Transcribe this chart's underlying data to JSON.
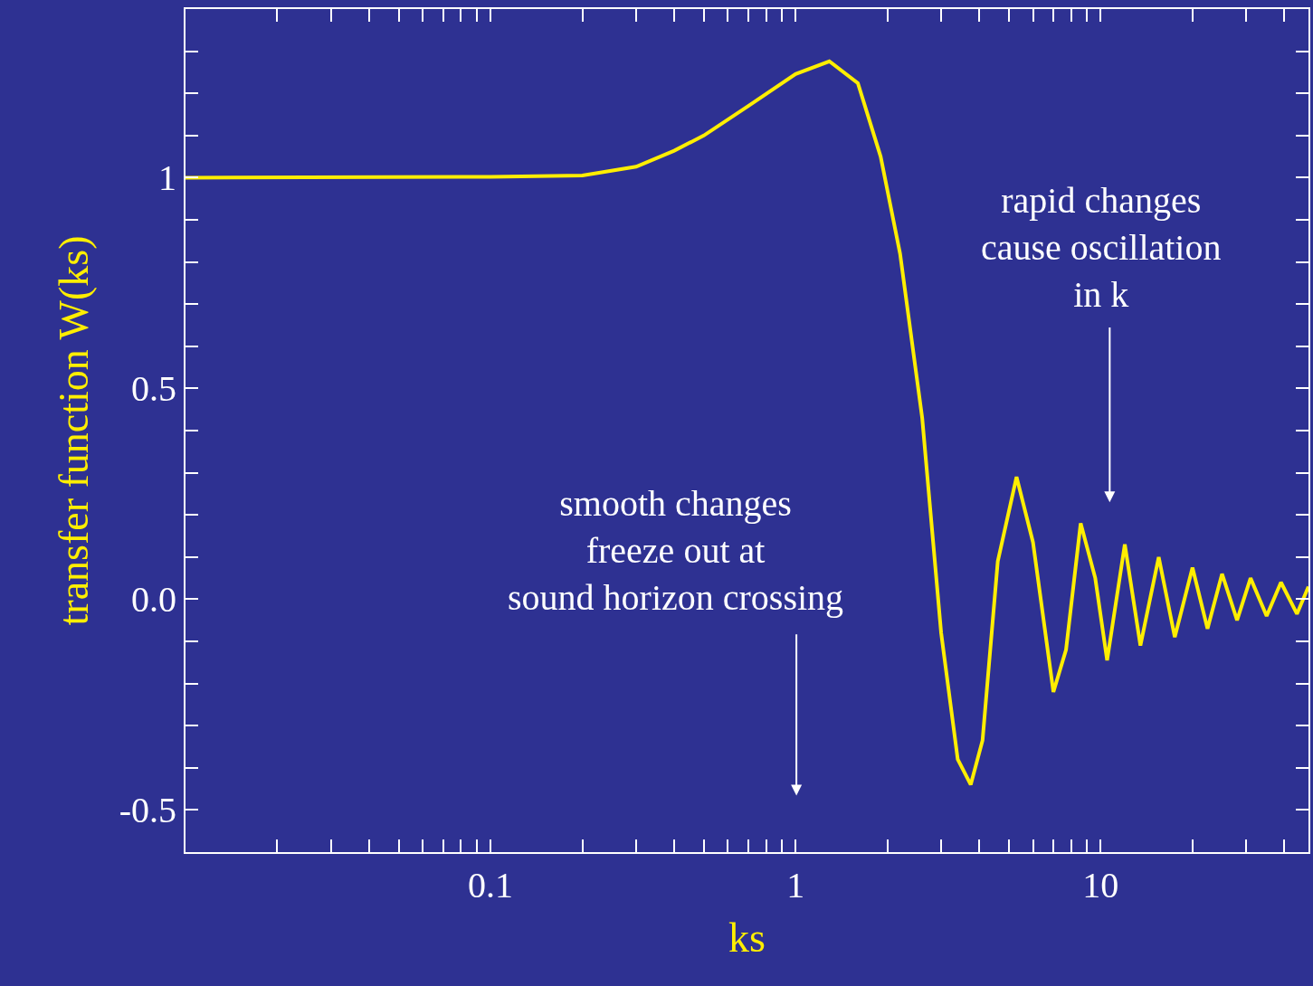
{
  "chart_data": {
    "type": "line",
    "xlabel": "ks",
    "ylabel": "transfer function W(ks)",
    "log": "x",
    "grid": false,
    "marker": "none",
    "line_style": "solid",
    "xlim": [
      0.01,
      48
    ],
    "ylim": [
      -0.6,
      1.4
    ],
    "xticks": [
      {
        "value": 0.02,
        "label": null
      },
      {
        "value": 0.03,
        "label": null
      },
      {
        "value": 0.04,
        "label": null
      },
      {
        "value": 0.05,
        "label": null
      },
      {
        "value": 0.06,
        "label": null
      },
      {
        "value": 0.07,
        "label": null
      },
      {
        "value": 0.08,
        "label": null
      },
      {
        "value": 0.09,
        "label": null
      },
      0.1,
      {
        "value": 0.2,
        "label": null
      },
      {
        "value": 0.3,
        "label": null
      },
      {
        "value": 0.4,
        "label": null
      },
      {
        "value": 0.5,
        "label": null
      },
      {
        "value": 0.6,
        "label": null
      },
      {
        "value": 0.7,
        "label": null
      },
      {
        "value": 0.8,
        "label": null
      },
      {
        "value": 0.9,
        "label": null
      },
      1,
      {
        "value": 2,
        "label": null
      },
      {
        "value": 3,
        "label": null
      },
      {
        "value": 4,
        "label": null
      },
      {
        "value": 5,
        "label": null
      },
      {
        "value": 6,
        "label": null
      },
      {
        "value": 7,
        "label": null
      },
      {
        "value": 8,
        "label": null
      },
      {
        "value": 9,
        "label": null
      },
      10,
      {
        "value": 20,
        "label": null
      },
      {
        "value": 30,
        "label": null
      },
      {
        "value": 40,
        "label": null
      }
    ],
    "yticks": [
      -0.5,
      {
        "value": -0.4,
        "label": null
      },
      {
        "value": -0.3,
        "label": null
      },
      {
        "value": -0.2,
        "label": null
      },
      {
        "value": -0.1,
        "label": null
      },
      {
        "value": 0,
        "label": "0.0"
      },
      {
        "value": 0.1,
        "label": null
      },
      {
        "value": 0.2,
        "label": null
      },
      {
        "value": 0.3,
        "label": null
      },
      {
        "value": 0.4,
        "label": null
      },
      0.5,
      {
        "value": 0.6,
        "label": null
      },
      {
        "value": 0.7,
        "label": null
      },
      {
        "value": 0.8,
        "label": null
      },
      {
        "value": 0.9,
        "label": null
      },
      1,
      {
        "value": 1.1,
        "label": null
      },
      {
        "value": 1.2,
        "label": null
      },
      {
        "value": 1.3,
        "label": null
      }
    ],
    "series": [
      {
        "color": "#ffee00",
        "x": [
          0.01,
          0.1,
          0.2,
          0.3,
          0.4,
          0.5,
          0.7,
          1.0,
          1.29,
          1.6,
          1.9,
          2.2,
          2.6,
          3.0,
          3.4,
          3.75,
          4.1,
          4.6,
          5.3,
          6.0,
          7.0,
          7.7,
          8.6,
          9.6,
          10.5,
          12,
          13.5,
          15.5,
          17.5,
          20,
          22.4,
          25,
          28,
          31,
          35,
          39,
          44,
          48
        ],
        "values": [
          1.0,
          1.002,
          1.005,
          1.026,
          1.064,
          1.1,
          1.17,
          1.246,
          1.276,
          1.224,
          1.05,
          0.82,
          0.43,
          -0.08,
          -0.38,
          -0.44,
          -0.335,
          0.09,
          0.29,
          0.135,
          -0.22,
          -0.12,
          0.18,
          0.05,
          -0.145,
          0.13,
          -0.11,
          0.1,
          -0.09,
          0.075,
          -0.07,
          0.06,
          -0.05,
          0.05,
          -0.04,
          0.04,
          -0.035,
          0.03
        ]
      }
    ],
    "annotations": [
      "smooth changes\nfreeze out at\nsound horizon crossing",
      "rapid changes\ncause oscillation\nin k"
    ]
  }
}
